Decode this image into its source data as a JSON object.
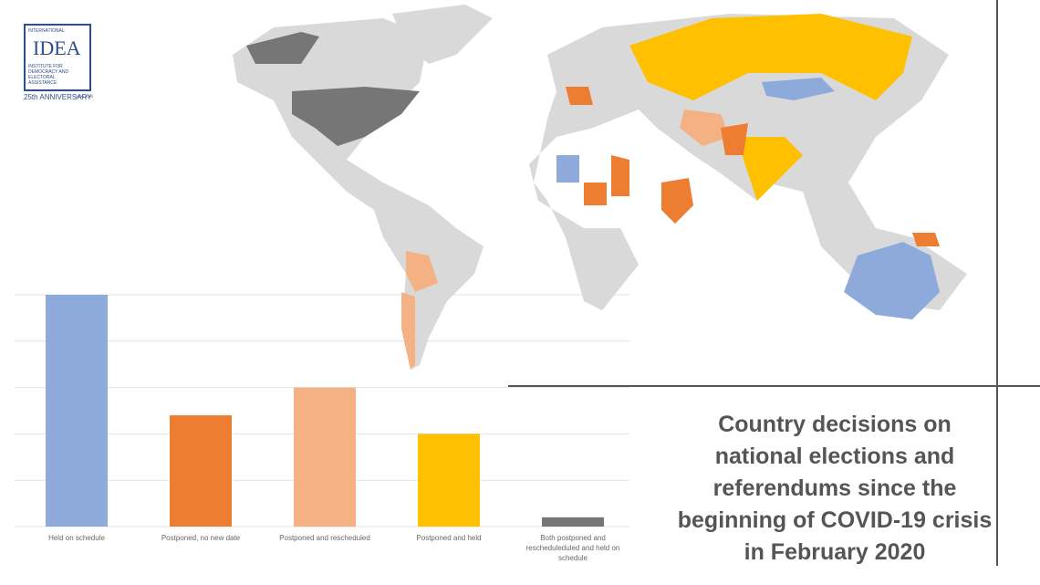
{
  "logo": {
    "top": "INTERNATIONAL",
    "name": "IDEA",
    "sub": "INSTITUTE FOR DEMOCRACY AND ELECTORAL ASSISTANCE",
    "anniversary": "25th ANNIVERSARY",
    "years": "1995-2020"
  },
  "chart_data": {
    "type": "bar",
    "title": "Country decisions on national elections and referendums since the beginning of COVID-19 crisis in February 2020",
    "categories": [
      "Held on schedule",
      "Postponed, no new date",
      "Postponed and rescheduled",
      "Postponed and held",
      "Both postponed and rescheduleduled and held on schedule"
    ],
    "values": [
      5,
      2.4,
      3,
      2,
      0.2
    ],
    "colors": [
      "#8eaadb",
      "#ed7d31",
      "#f4b183",
      "#ffc000",
      "#767676"
    ],
    "ylim": [
      0,
      5
    ],
    "yticks": [
      0,
      1,
      2,
      3,
      4,
      5
    ],
    "grid": true
  }
}
